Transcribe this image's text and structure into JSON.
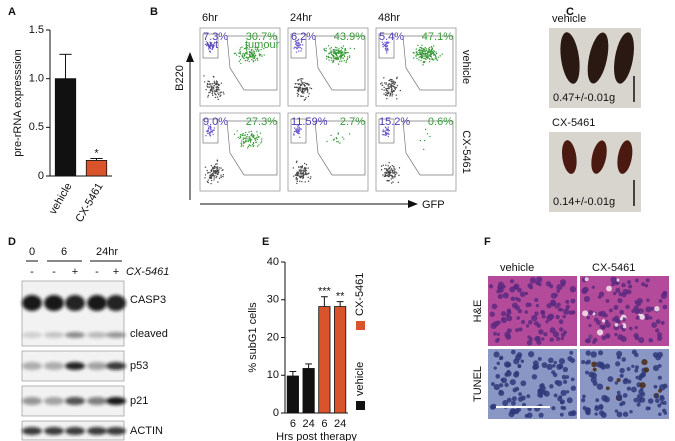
{
  "panel_labels": [
    "A",
    "B",
    "C",
    "D",
    "E",
    "F"
  ],
  "chart_data": [
    {
      "type": "bar",
      "categories": [
        "vehicle",
        "CX-5461"
      ],
      "values": [
        1.0,
        0.16
      ],
      "errors": [
        0.25,
        0.02
      ],
      "colors": [
        "#111111",
        "#d9542b"
      ],
      "ylabel": "pre-rRNA expresssion",
      "ylim": [
        0,
        1.5
      ],
      "yticks": [
        0,
        0.5,
        {
          "value": 1,
          "label": "1.0"
        },
        1.5
      ],
      "value_annotations": [
        null,
        "*"
      ]
    },
    {
      "type": "bar",
      "categories": [
        "6",
        "24",
        "6",
        "24"
      ],
      "xlabel": "Hrs post therapy",
      "ylabel": "% subG1 cells",
      "series": [
        {
          "name": "vehicle",
          "color": "#111111",
          "values": [
            9.8,
            11.8,
            null,
            null
          ],
          "errors": [
            1.2,
            1.2,
            null,
            null
          ]
        },
        {
          "name": "CX-5461",
          "color": "#d9542b",
          "values": [
            null,
            null,
            28.2,
            28.2
          ],
          "errors": [
            null,
            null,
            2.6,
            1.3
          ]
        }
      ],
      "ylim": [
        0,
        40
      ],
      "yticks": [
        0,
        10,
        20,
        30,
        40
      ],
      "value_annotations": [
        null,
        null,
        "***",
        "**"
      ],
      "legend": "right"
    }
  ],
  "flow": {
    "times": [
      "6hr",
      "24hr",
      "48hr"
    ],
    "rows": [
      "vehicle",
      "CX-5461"
    ],
    "y_axis": "B220",
    "x_axis": "GFP",
    "gate_names": [
      "wt",
      "tumour"
    ],
    "cells": [
      [
        [
          "7.3%",
          "30.7%"
        ],
        [
          "6.2%",
          "43.9%"
        ],
        [
          "5.4%",
          "47.1%"
        ]
      ],
      [
        [
          "9.0%",
          "27.3%"
        ],
        [
          "11.59%",
          "2.7%"
        ],
        [
          "15.2%",
          "0.6%"
        ]
      ]
    ]
  },
  "spleen": {
    "groups": [
      {
        "label": "vehicle",
        "weight": "0.47+/-0.01g"
      },
      {
        "label": "CX-5461",
        "weight": "0.14+/-0.01g"
      }
    ]
  },
  "blot": {
    "time_labels": [
      "0",
      "6",
      "24hr"
    ],
    "treatment": [
      "-",
      "-",
      "+",
      "-",
      "+"
    ],
    "treatment_label": "CX-5461",
    "rows": [
      "CASP3",
      "cleaved",
      "p53",
      "p21",
      "ACTIN"
    ]
  },
  "histology": {
    "columns": [
      "vehicle",
      "CX-5461"
    ],
    "rows": [
      "H&E",
      "TUNEL"
    ]
  }
}
